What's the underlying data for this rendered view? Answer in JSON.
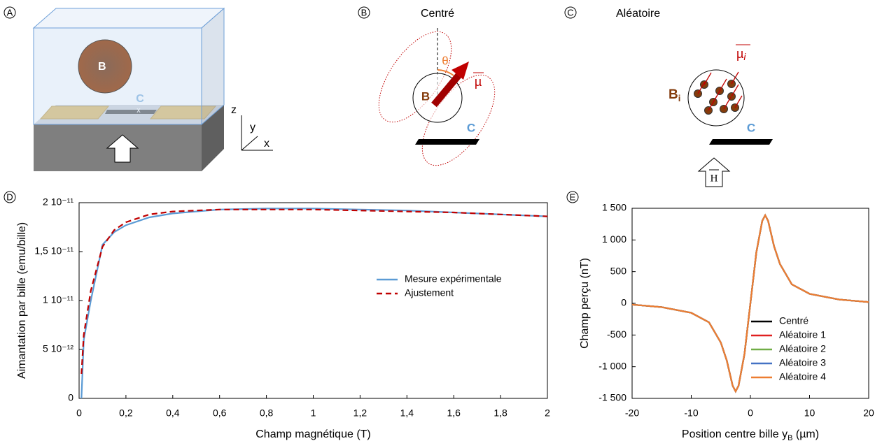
{
  "chart_data": [
    {
      "type": "line",
      "x_label": "Champ magnétique (T)",
      "y_label": "Aimantation par bille (emu/bille)",
      "x": [
        0.01,
        0.02,
        0.05,
        0.1,
        0.15,
        0.2,
        0.3,
        0.4,
        0.6,
        0.8,
        1.0,
        1.2,
        1.4,
        1.6,
        1.8,
        2.0
      ],
      "series": [
        {
          "name": "Mesure expérimentale",
          "color": "#5b9bd5",
          "style": "solid",
          "values": [
            0,
            6e-12,
            1e-11,
            1.57e-11,
            1.7e-11,
            1.77e-11,
            1.85e-11,
            1.89e-11,
            1.93e-11,
            1.94e-11,
            1.94e-11,
            1.93e-11,
            1.92e-11,
            1.9e-11,
            1.88e-11,
            1.86e-11
          ]
        },
        {
          "name": "Ajustement",
          "color": "#c00000",
          "style": "dashed",
          "values": [
            2.5e-12,
            6.5e-12,
            1.1e-11,
            1.55e-11,
            1.72e-11,
            1.8e-11,
            1.88e-11,
            1.91e-11,
            1.93e-11,
            1.93e-11,
            1.93e-11,
            1.92e-11,
            1.91e-11,
            1.9e-11,
            1.88e-11,
            1.86e-11
          ]
        }
      ],
      "xlim": [
        0,
        2
      ],
      "xticks": [
        0,
        {
          "value": 0.2,
          "label": "0,2"
        },
        {
          "value": 0.4,
          "label": "0,4"
        },
        {
          "value": 0.6,
          "label": "0,6"
        },
        {
          "value": 0.8,
          "label": "0,8"
        },
        1,
        {
          "value": 1.2,
          "label": "1,2"
        },
        {
          "value": 1.4,
          "label": "1,4"
        },
        {
          "value": 1.6,
          "label": "1,6"
        },
        {
          "value": 1.8,
          "label": "1,8"
        },
        2
      ],
      "ylim": [
        0,
        2e-11
      ],
      "yticks": [
        0,
        {
          "value": 5e-12,
          "label": "5 10⁻¹²"
        },
        {
          "value": 1e-11,
          "label": "1 10⁻¹¹"
        },
        {
          "value": 1.5e-11,
          "label": "1,5 10⁻¹¹"
        },
        {
          "value": 2e-11,
          "label": "2 10⁻¹¹"
        }
      ],
      "legend": "right"
    },
    {
      "type": "line",
      "x_label": "Position centre bille y",
      "x_label_sub": "B",
      "x_label_end": " (µm)",
      "y_label": "Champ perçu (nT)",
      "x": [
        -20,
        -15,
        -10,
        -7,
        -5,
        -4,
        -3,
        -2.5,
        -2,
        -1,
        0,
        1,
        2,
        2.5,
        3,
        4,
        5,
        7,
        10,
        15,
        20
      ],
      "series": [
        {
          "name": "Centré",
          "color": "#000000",
          "style": "solid",
          "values": [
            -20,
            -60,
            -150,
            -300,
            -620,
            -900,
            -1300,
            -1390,
            -1300,
            -800,
            0,
            800,
            1300,
            1390,
            1300,
            900,
            620,
            300,
            150,
            60,
            20
          ]
        },
        {
          "name": "Aléatoire 1",
          "color": "#e02020",
          "style": "solid",
          "values": [
            -20,
            -60,
            -150,
            -300,
            -620,
            -900,
            -1300,
            -1390,
            -1300,
            -800,
            0,
            800,
            1300,
            1390,
            1300,
            900,
            620,
            300,
            150,
            60,
            20
          ]
        },
        {
          "name": "Aléatoire 2",
          "color": "#70ad47",
          "style": "solid",
          "values": [
            -20,
            -60,
            -150,
            -300,
            -620,
            -900,
            -1300,
            -1390,
            -1300,
            -800,
            0,
            800,
            1300,
            1390,
            1300,
            900,
            620,
            300,
            150,
            60,
            20
          ]
        },
        {
          "name": "Aléatoire 3",
          "color": "#4472c4",
          "style": "solid",
          "values": [
            -20,
            -60,
            -150,
            -300,
            -620,
            -900,
            -1300,
            -1390,
            -1300,
            -800,
            0,
            800,
            1300,
            1390,
            1300,
            900,
            620,
            300,
            150,
            60,
            20
          ]
        },
        {
          "name": "Aléatoire 4",
          "color": "#ed7d31",
          "style": "solid",
          "values": [
            -20,
            -60,
            -150,
            -300,
            -620,
            -900,
            -1300,
            -1390,
            -1300,
            -800,
            0,
            800,
            1300,
            1390,
            1300,
            900,
            620,
            300,
            150,
            60,
            20
          ]
        }
      ],
      "xlim": [
        -20,
        20
      ],
      "xticks": [
        -20,
        -10,
        0,
        10,
        20
      ],
      "ylim": [
        -1500,
        1500
      ],
      "yticks": [
        {
          "value": -1500,
          "label": "-1 500"
        },
        {
          "value": -1000,
          "label": "-1 000"
        },
        -500,
        0,
        500,
        {
          "value": 1000,
          "label": "1 000"
        },
        {
          "value": 1500,
          "label": "1 500"
        }
      ],
      "legend": "lower right"
    }
  ],
  "diagrams": {
    "panel_labels": [
      "A",
      "B",
      "C",
      "D",
      "E"
    ],
    "a": {
      "bead": "B",
      "sensor": "C",
      "z": "z",
      "y": "y",
      "x": "x"
    },
    "b": {
      "title": "Centré",
      "theta": "θ",
      "mu": "µ",
      "bead": "B",
      "sensor": "C"
    },
    "c": {
      "title": "Aléatoire",
      "mu": "µ",
      "mu_sub": "i",
      "bead": "B",
      "bead_sub": "i",
      "sensor": "C",
      "field": "H"
    }
  }
}
